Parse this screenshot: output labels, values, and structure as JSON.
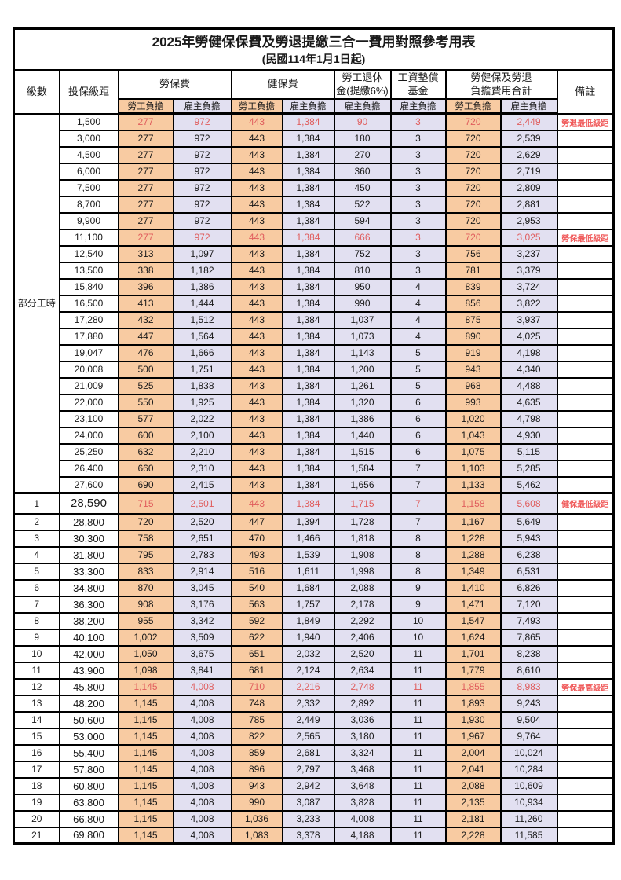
{
  "title": "2025年勞健保保費及勞退提繳三合一費用對照參考用表",
  "subtitle": "(民國114年1月1日起)",
  "colors": {
    "employee_column_bg": "#F8CBA2",
    "employer_column_bg": "#E2E0F1",
    "highlight_text": "#E05D5D",
    "remark_text": "#F05A5A",
    "border": "#000000"
  },
  "table": {
    "header": {
      "level": "級數",
      "bracket": "投保級距",
      "labor_insurance": "勞保費",
      "health_insurance": "健保費",
      "pension_line1": "勞工退休",
      "pension_line2": "金(提繳6%)",
      "wage_fund_line1": "工資墊償",
      "wage_fund_line2": "基金",
      "total_line1": "勞健保及勞退",
      "total_line2": "負擔費用合計",
      "remark": "備註",
      "employee": "勞工負擔",
      "employer": "雇主負擔"
    },
    "part_time_label": "部分工時",
    "rows": [
      {
        "level": "",
        "bracket": "1,500",
        "values": [
          "277",
          "972",
          "443",
          "1,384",
          "90",
          "3",
          "720",
          "2,449"
        ],
        "remark": "勞退最低級距",
        "highlight": true
      },
      {
        "level": "",
        "bracket": "3,000",
        "values": [
          "277",
          "972",
          "443",
          "1,384",
          "180",
          "3",
          "720",
          "2,539"
        ],
        "remark": ""
      },
      {
        "level": "",
        "bracket": "4,500",
        "values": [
          "277",
          "972",
          "443",
          "1,384",
          "270",
          "3",
          "720",
          "2,629"
        ],
        "remark": ""
      },
      {
        "level": "",
        "bracket": "6,000",
        "values": [
          "277",
          "972",
          "443",
          "1,384",
          "360",
          "3",
          "720",
          "2,719"
        ],
        "remark": ""
      },
      {
        "level": "",
        "bracket": "7,500",
        "values": [
          "277",
          "972",
          "443",
          "1,384",
          "450",
          "3",
          "720",
          "2,809"
        ],
        "remark": ""
      },
      {
        "level": "",
        "bracket": "8,700",
        "values": [
          "277",
          "972",
          "443",
          "1,384",
          "522",
          "3",
          "720",
          "2,881"
        ],
        "remark": ""
      },
      {
        "level": "",
        "bracket": "9,900",
        "values": [
          "277",
          "972",
          "443",
          "1,384",
          "594",
          "3",
          "720",
          "2,953"
        ],
        "remark": ""
      },
      {
        "level": "",
        "bracket": "11,100",
        "values": [
          "277",
          "972",
          "443",
          "1,384",
          "666",
          "3",
          "720",
          "3,025"
        ],
        "remark": "勞保最低級距",
        "highlight": true
      },
      {
        "level": "",
        "bracket": "12,540",
        "values": [
          "313",
          "1,097",
          "443",
          "1,384",
          "752",
          "3",
          "756",
          "3,237"
        ],
        "remark": ""
      },
      {
        "level": "",
        "bracket": "13,500",
        "values": [
          "338",
          "1,182",
          "443",
          "1,384",
          "810",
          "3",
          "781",
          "3,379"
        ],
        "remark": ""
      },
      {
        "level": "",
        "bracket": "15,840",
        "values": [
          "396",
          "1,386",
          "443",
          "1,384",
          "950",
          "4",
          "839",
          "3,724"
        ],
        "remark": ""
      },
      {
        "level": "",
        "bracket": "16,500",
        "values": [
          "413",
          "1,444",
          "443",
          "1,384",
          "990",
          "4",
          "856",
          "3,822"
        ],
        "remark": ""
      },
      {
        "level": "",
        "bracket": "17,280",
        "values": [
          "432",
          "1,512",
          "443",
          "1,384",
          "1,037",
          "4",
          "875",
          "3,937"
        ],
        "remark": ""
      },
      {
        "level": "",
        "bracket": "17,880",
        "values": [
          "447",
          "1,564",
          "443",
          "1,384",
          "1,073",
          "4",
          "890",
          "4,025"
        ],
        "remark": ""
      },
      {
        "level": "",
        "bracket": "19,047",
        "values": [
          "476",
          "1,666",
          "443",
          "1,384",
          "1,143",
          "5",
          "919",
          "4,198"
        ],
        "remark": ""
      },
      {
        "level": "",
        "bracket": "20,008",
        "values": [
          "500",
          "1,751",
          "443",
          "1,384",
          "1,200",
          "5",
          "943",
          "4,340"
        ],
        "remark": ""
      },
      {
        "level": "",
        "bracket": "21,009",
        "values": [
          "525",
          "1,838",
          "443",
          "1,384",
          "1,261",
          "5",
          "968",
          "4,488"
        ],
        "remark": ""
      },
      {
        "level": "",
        "bracket": "22,000",
        "values": [
          "550",
          "1,925",
          "443",
          "1,384",
          "1,320",
          "6",
          "993",
          "4,635"
        ],
        "remark": ""
      },
      {
        "level": "",
        "bracket": "23,100",
        "values": [
          "577",
          "2,022",
          "443",
          "1,384",
          "1,386",
          "6",
          "1,020",
          "4,798"
        ],
        "remark": ""
      },
      {
        "level": "",
        "bracket": "24,000",
        "values": [
          "600",
          "2,100",
          "443",
          "1,384",
          "1,440",
          "6",
          "1,043",
          "4,930"
        ],
        "remark": ""
      },
      {
        "level": "",
        "bracket": "25,250",
        "values": [
          "632",
          "2,210",
          "443",
          "1,384",
          "1,515",
          "6",
          "1,075",
          "5,115"
        ],
        "remark": ""
      },
      {
        "level": "",
        "bracket": "26,400",
        "values": [
          "660",
          "2,310",
          "443",
          "1,384",
          "1,584",
          "7",
          "1,103",
          "5,285"
        ],
        "remark": ""
      },
      {
        "level": "",
        "bracket": "27,600",
        "values": [
          "690",
          "2,415",
          "443",
          "1,384",
          "1,656",
          "7",
          "1,133",
          "5,462"
        ],
        "remark": ""
      },
      {
        "level": "1",
        "bracket": "28,590",
        "values": [
          "715",
          "2,501",
          "443",
          "1,384",
          "1,715",
          "7",
          "1,158",
          "5,608"
        ],
        "remark": "健保最低級距",
        "highlight": true,
        "major": true
      },
      {
        "level": "2",
        "bracket": "28,800",
        "values": [
          "720",
          "2,520",
          "447",
          "1,394",
          "1,728",
          "7",
          "1,167",
          "5,649"
        ],
        "remark": ""
      },
      {
        "level": "3",
        "bracket": "30,300",
        "values": [
          "758",
          "2,651",
          "470",
          "1,466",
          "1,818",
          "8",
          "1,228",
          "5,943"
        ],
        "remark": ""
      },
      {
        "level": "4",
        "bracket": "31,800",
        "values": [
          "795",
          "2,783",
          "493",
          "1,539",
          "1,908",
          "8",
          "1,288",
          "6,238"
        ],
        "remark": ""
      },
      {
        "level": "5",
        "bracket": "33,300",
        "values": [
          "833",
          "2,914",
          "516",
          "1,611",
          "1,998",
          "8",
          "1,349",
          "6,531"
        ],
        "remark": ""
      },
      {
        "level": "6",
        "bracket": "34,800",
        "values": [
          "870",
          "3,045",
          "540",
          "1,684",
          "2,088",
          "9",
          "1,410",
          "6,826"
        ],
        "remark": ""
      },
      {
        "level": "7",
        "bracket": "36,300",
        "values": [
          "908",
          "3,176",
          "563",
          "1,757",
          "2,178",
          "9",
          "1,471",
          "7,120"
        ],
        "remark": ""
      },
      {
        "level": "8",
        "bracket": "38,200",
        "values": [
          "955",
          "3,342",
          "592",
          "1,849",
          "2,292",
          "10",
          "1,547",
          "7,493"
        ],
        "remark": ""
      },
      {
        "level": "9",
        "bracket": "40,100",
        "values": [
          "1,002",
          "3,509",
          "622",
          "1,940",
          "2,406",
          "10",
          "1,624",
          "7,865"
        ],
        "remark": ""
      },
      {
        "level": "10",
        "bracket": "42,000",
        "values": [
          "1,050",
          "3,675",
          "651",
          "2,032",
          "2,520",
          "11",
          "1,701",
          "8,238"
        ],
        "remark": ""
      },
      {
        "level": "11",
        "bracket": "43,900",
        "values": [
          "1,098",
          "3,841",
          "681",
          "2,124",
          "2,634",
          "11",
          "1,779",
          "8,610"
        ],
        "remark": ""
      },
      {
        "level": "12",
        "bracket": "45,800",
        "values": [
          "1,145",
          "4,008",
          "710",
          "2,216",
          "2,748",
          "11",
          "1,855",
          "8,983"
        ],
        "remark": "勞保最高級距",
        "highlight": true
      },
      {
        "level": "13",
        "bracket": "48,200",
        "values": [
          "1,145",
          "4,008",
          "748",
          "2,332",
          "2,892",
          "11",
          "1,893",
          "9,243"
        ],
        "remark": ""
      },
      {
        "level": "14",
        "bracket": "50,600",
        "values": [
          "1,145",
          "4,008",
          "785",
          "2,449",
          "3,036",
          "11",
          "1,930",
          "9,504"
        ],
        "remark": ""
      },
      {
        "level": "15",
        "bracket": "53,000",
        "values": [
          "1,145",
          "4,008",
          "822",
          "2,565",
          "3,180",
          "11",
          "1,967",
          "9,764"
        ],
        "remark": ""
      },
      {
        "level": "16",
        "bracket": "55,400",
        "values": [
          "1,145",
          "4,008",
          "859",
          "2,681",
          "3,324",
          "11",
          "2,004",
          "10,024"
        ],
        "remark": ""
      },
      {
        "level": "17",
        "bracket": "57,800",
        "values": [
          "1,145",
          "4,008",
          "896",
          "2,797",
          "3,468",
          "11",
          "2,041",
          "10,284"
        ],
        "remark": ""
      },
      {
        "level": "18",
        "bracket": "60,800",
        "values": [
          "1,145",
          "4,008",
          "943",
          "2,942",
          "3,648",
          "11",
          "2,088",
          "10,609"
        ],
        "remark": ""
      },
      {
        "level": "19",
        "bracket": "63,800",
        "values": [
          "1,145",
          "4,008",
          "990",
          "3,087",
          "3,828",
          "11",
          "2,135",
          "10,934"
        ],
        "remark": ""
      },
      {
        "level": "20",
        "bracket": "66,800",
        "values": [
          "1,145",
          "4,008",
          "1,036",
          "3,233",
          "4,008",
          "11",
          "2,181",
          "11,260"
        ],
        "remark": ""
      },
      {
        "level": "21",
        "bracket": "69,800",
        "values": [
          "1,145",
          "4,008",
          "1,083",
          "3,378",
          "4,188",
          "11",
          "2,228",
          "11,585"
        ],
        "remark": ""
      }
    ]
  }
}
